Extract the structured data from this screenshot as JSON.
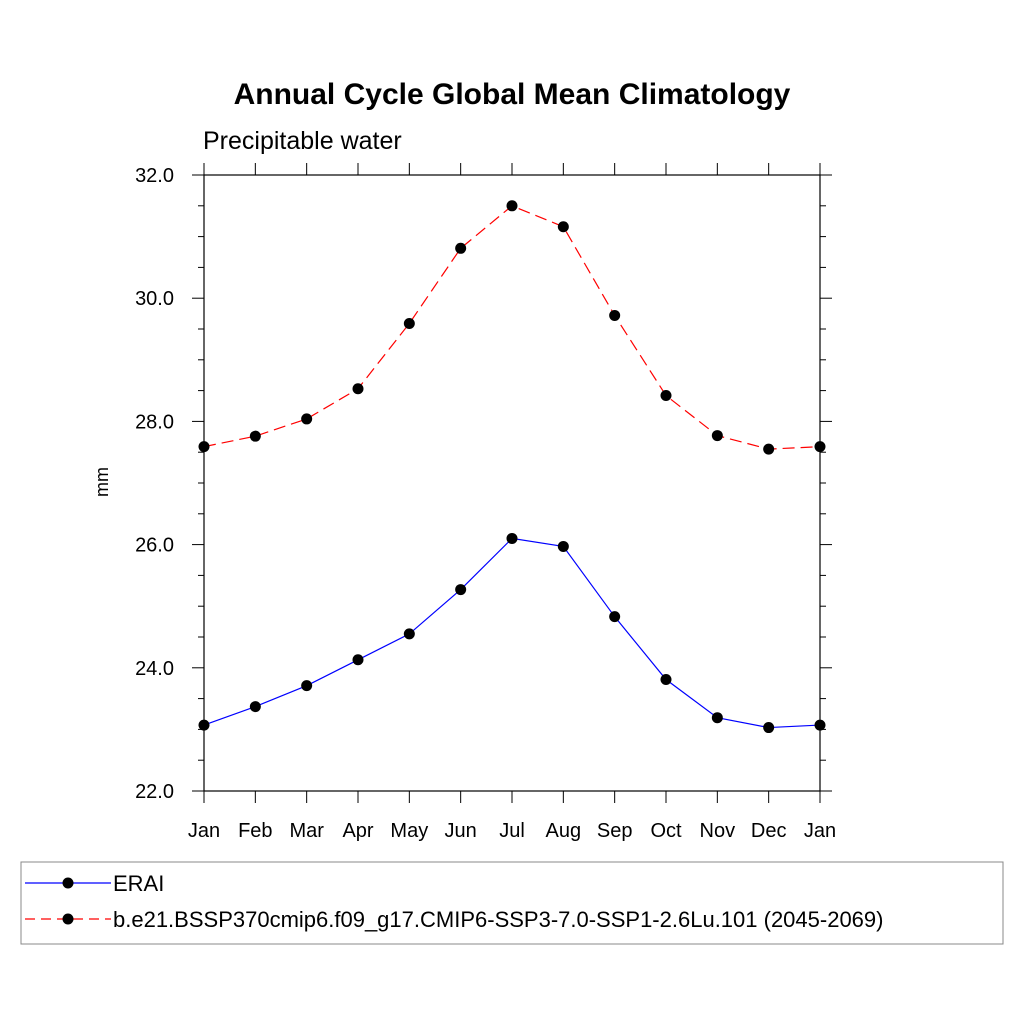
{
  "chart_data": {
    "type": "line",
    "title": "Annual Cycle Global Mean Climatology",
    "subtitle": "Precipitable water",
    "xlabel": "",
    "ylabel": "mm",
    "x": [
      "Jan",
      "Feb",
      "Mar",
      "Apr",
      "May",
      "Jun",
      "Jul",
      "Aug",
      "Sep",
      "Oct",
      "Nov",
      "Dec",
      "Jan"
    ],
    "ylim": [
      22.0,
      32.0
    ],
    "yticks": [
      "22.0",
      "24.0",
      "26.0",
      "28.0",
      "30.0",
      "32.0"
    ],
    "grid": false,
    "legend_position": "bottom",
    "series": [
      {
        "name": "ERAI",
        "color": "#0000ff",
        "line_style": "solid",
        "marker": "filled-circle",
        "values": [
          23.07,
          23.37,
          23.71,
          24.13,
          24.55,
          25.27,
          26.1,
          25.97,
          24.83,
          23.81,
          23.19,
          23.03,
          23.07
        ]
      },
      {
        "name": "b.e21.BSSP370cmip6.f09_g17.CMIP6-SSP3-7.0-SSP1-2.6Lu.101 (2045-2069)",
        "color": "#ff0000",
        "line_style": "dashed",
        "marker": "filled-circle",
        "values": [
          27.59,
          27.76,
          28.04,
          28.53,
          29.59,
          30.81,
          31.5,
          31.16,
          29.72,
          28.42,
          27.77,
          27.55,
          27.59
        ]
      }
    ]
  }
}
